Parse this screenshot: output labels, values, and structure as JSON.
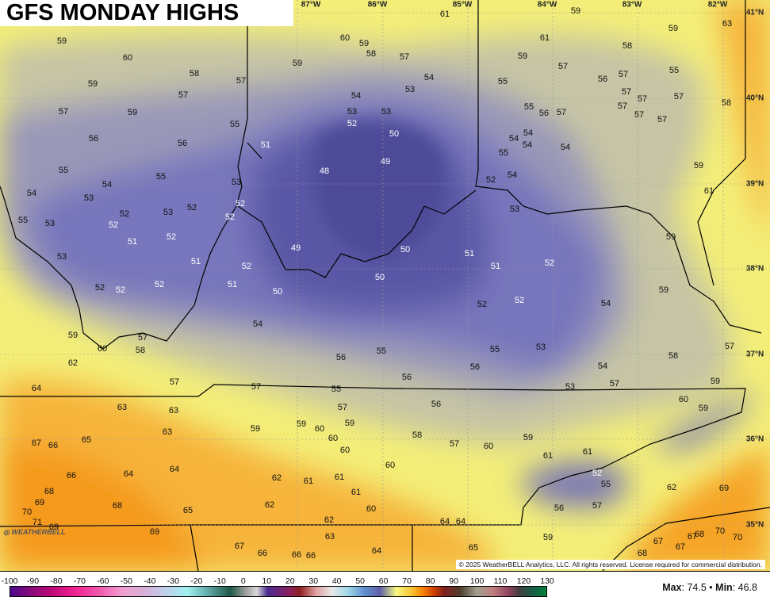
{
  "title": "GFS MONDAY HIGHS",
  "copyright": "© 2025 WeatherBELL Analytics, LLC. All rights reserved. License required for commercial distribution.",
  "logo_text": "WEATHERBELL",
  "longitude_labels": [
    "87°W",
    "86°W",
    "85°W",
    "84°W",
    "83°W",
    "82°W"
  ],
  "latitude_labels": [
    "41°N",
    "40°N",
    "39°N",
    "38°N",
    "37°N",
    "36°N",
    "35°N"
  ],
  "temperatures": [
    61,
    59,
    59,
    63,
    60,
    59,
    58,
    57,
    61,
    59,
    57,
    58,
    55,
    56,
    57,
    59,
    60,
    58,
    59,
    57,
    57,
    59,
    54,
    53,
    55,
    54,
    53,
    53,
    52,
    50,
    55,
    56,
    57,
    57,
    57,
    57,
    58,
    57,
    57,
    57,
    57,
    59,
    55,
    56,
    56,
    51,
    54,
    54,
    54,
    54,
    55,
    55,
    55,
    48,
    49,
    53,
    54,
    52,
    59,
    61,
    54,
    54,
    53,
    52,
    53,
    52,
    52,
    52,
    55,
    53,
    52,
    52,
    51,
    53,
    59,
    53,
    51,
    52,
    49,
    50,
    51,
    51,
    52,
    52,
    52,
    52,
    51,
    50,
    50,
    52,
    52,
    54,
    59,
    54,
    59,
    57,
    58,
    60,
    56,
    55,
    55,
    53,
    58,
    57,
    62,
    56,
    56,
    54,
    57,
    53,
    59,
    64,
    57,
    57,
    55,
    56,
    60,
    59,
    63,
    63,
    63,
    57,
    59,
    59,
    59,
    60,
    60,
    58,
    57,
    60,
    59,
    65,
    67,
    66,
    60,
    61,
    61,
    66,
    64,
    64,
    62,
    61,
    61,
    60,
    52,
    55,
    62,
    69,
    68,
    69,
    70,
    68,
    65,
    62,
    61,
    60,
    56,
    57,
    71,
    69,
    69,
    62,
    64,
    64,
    70,
    63,
    59,
    70,
    68,
    67,
    67,
    67,
    67,
    66,
    66,
    66,
    64,
    65,
    68
  ],
  "colorbar": {
    "ticks": [
      "-100",
      "-90",
      "-80",
      "-70",
      "-60",
      "-50",
      "-40",
      "-30",
      "-20",
      "-10",
      "0",
      "10",
      "20",
      "30",
      "40",
      "50",
      "60",
      "70",
      "80",
      "90",
      "100",
      "110",
      "120",
      "130"
    ]
  },
  "stats": {
    "max_label": "Max",
    "max": "74.5",
    "sep": "•",
    "min_label": "Min",
    "min": "46.8"
  },
  "colors": {
    "cold_purple": "#5a5aa8",
    "gray": "#b9b9a8",
    "yellow": "#f3ee78",
    "orange": "#f7a020"
  }
}
